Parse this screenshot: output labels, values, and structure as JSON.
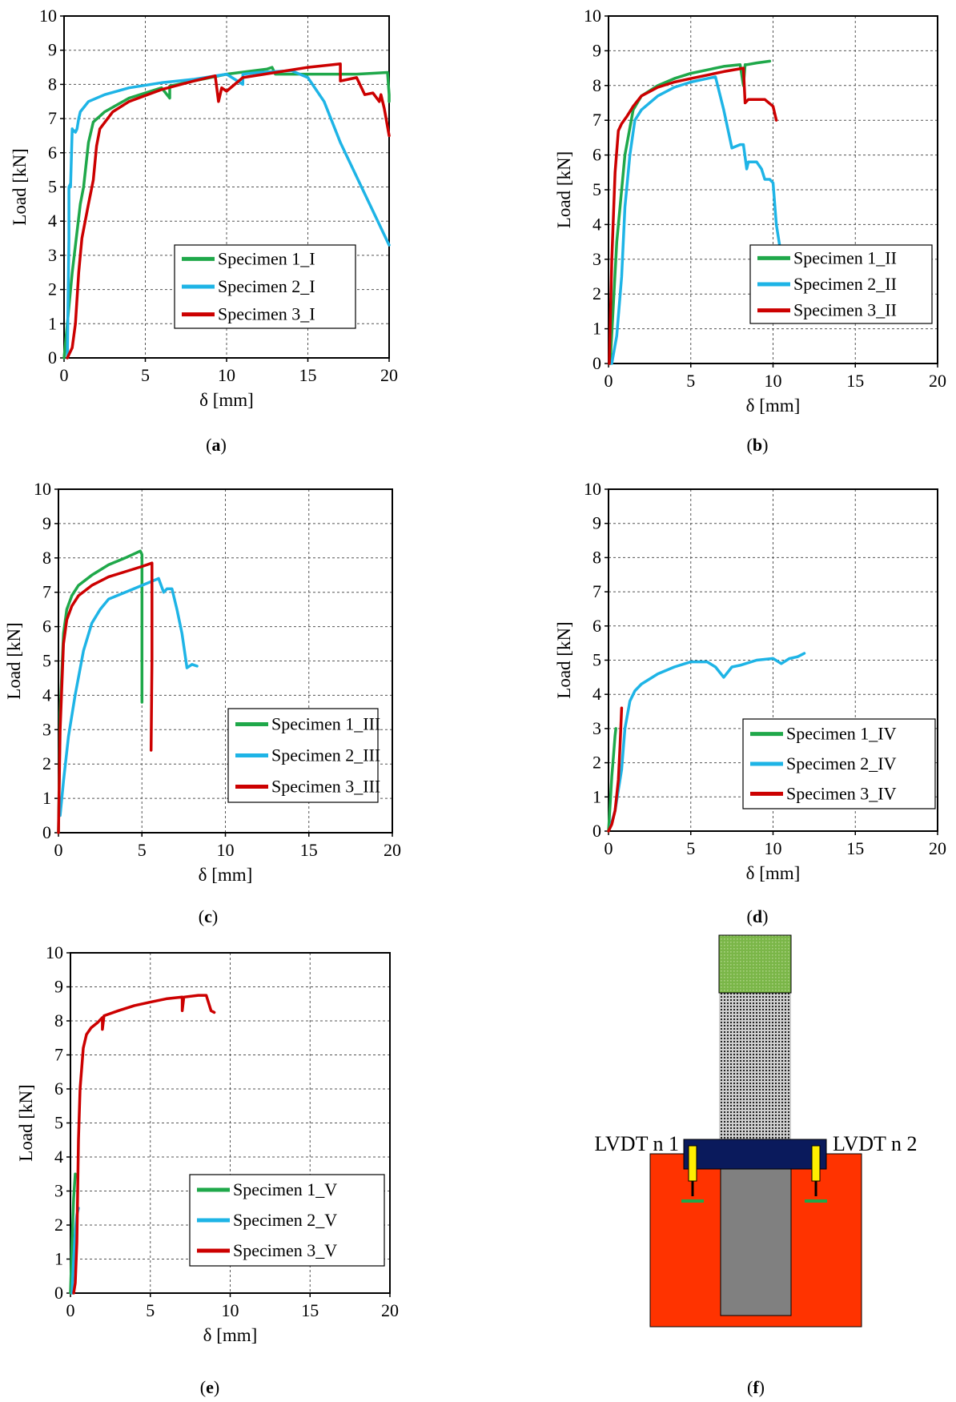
{
  "colors": {
    "green": "#1fa84a",
    "blue": "#1eb4e6",
    "red": "#cc0000",
    "setup_block": "#ff3300",
    "setup_plate": "#0a1a5c",
    "setup_bar": "#808080",
    "setup_top": "#7ab648",
    "setup_lvdt": "#ffee00",
    "setup_anchor": "#1fa84a"
  },
  "chart_data": [
    {
      "id": "a",
      "panel_label": "(a)",
      "type": "line",
      "xlabel": "δ [mm]",
      "ylabel": "Load [kN]",
      "xlim": [
        0,
        20
      ],
      "ylim": [
        0,
        10
      ],
      "xticks": [
        0,
        5,
        10,
        15,
        20
      ],
      "yticks": [
        0,
        1,
        2,
        3,
        4,
        5,
        6,
        7,
        8,
        9,
        10
      ],
      "grid": true,
      "legend_position": "bottom-right",
      "series": [
        {
          "name": "Specimen 1_I",
          "color": "green",
          "x": [
            0,
            0.5,
            1,
            1.2,
            1.5,
            1.8,
            2.5,
            4,
            6,
            6.5,
            6.5,
            8,
            10,
            12.5,
            12.8,
            13,
            15,
            18,
            19.9,
            20,
            20
          ],
          "y": [
            0,
            2.5,
            4.5,
            5.0,
            6.3,
            6.9,
            7.2,
            7.6,
            7.9,
            7.6,
            7.95,
            8.1,
            8.3,
            8.45,
            8.5,
            8.3,
            8.3,
            8.3,
            8.35,
            7.7,
            7.5
          ]
        },
        {
          "name": "Specimen 2_I",
          "color": "blue",
          "x": [
            0.2,
            0.3,
            0.3,
            0.4,
            0.4,
            0.5,
            0.5,
            0.6,
            0.7,
            0.8,
            0.9,
            1.0,
            1.5,
            2.5,
            4,
            6,
            8,
            10,
            11,
            11,
            12,
            14,
            15,
            16,
            17,
            20
          ],
          "y": [
            0,
            3.5,
            5.0,
            5.1,
            5.0,
            6.7,
            6.6,
            6.65,
            6.6,
            6.7,
            7.0,
            7.2,
            7.5,
            7.7,
            7.9,
            8.05,
            8.15,
            8.3,
            8.0,
            8.3,
            8.35,
            8.4,
            8.2,
            7.5,
            6.3,
            3.3
          ]
        },
        {
          "name": "Specimen 3_I",
          "color": "red",
          "x": [
            0.2,
            0.5,
            0.7,
            0.9,
            1.1,
            1.5,
            1.8,
            2,
            2.2,
            3,
            4,
            6,
            8,
            9.3,
            9.5,
            9.7,
            10,
            11,
            13,
            15,
            17,
            17,
            18,
            18.5,
            19,
            19.4,
            19.5,
            19.7,
            20
          ],
          "y": [
            0,
            0.3,
            1.0,
            2.5,
            3.5,
            4.5,
            5.2,
            6.2,
            6.7,
            7.2,
            7.5,
            7.85,
            8.1,
            8.25,
            7.5,
            7.9,
            7.8,
            8.2,
            8.35,
            8.5,
            8.6,
            8.1,
            8.2,
            7.7,
            7.75,
            7.5,
            7.7,
            7.3,
            6.5
          ]
        }
      ]
    },
    {
      "id": "b",
      "panel_label": "(b)",
      "type": "line",
      "xlabel": "δ [mm]",
      "ylabel": "Load [kN]",
      "xlim": [
        0,
        20
      ],
      "ylim": [
        0,
        10
      ],
      "xticks": [
        0,
        5,
        10,
        15,
        20
      ],
      "yticks": [
        0,
        1,
        2,
        3,
        4,
        5,
        6,
        7,
        8,
        9,
        10
      ],
      "grid": true,
      "legend_position": "bottom-right",
      "series": [
        {
          "name": "Specimen 1_II",
          "color": "green",
          "x": [
            0.1,
            0.5,
            1,
            1.5,
            2,
            3,
            4,
            5,
            6,
            7,
            8,
            8.2,
            8.3,
            8.4,
            9,
            9.8
          ],
          "y": [
            0,
            3.5,
            6.0,
            7.3,
            7.7,
            8.0,
            8.2,
            8.35,
            8.45,
            8.55,
            8.6,
            8.0,
            8.6,
            8.6,
            8.65,
            8.7
          ]
        },
        {
          "name": "Specimen 2_II",
          "color": "blue",
          "x": [
            0.2,
            0.5,
            0.8,
            1,
            1.3,
            1.6,
            2,
            3,
            4,
            5,
            6,
            6.5,
            7,
            7.5,
            8,
            8.2,
            8.4,
            8.5,
            9,
            9.3,
            9.5,
            9.8,
            10,
            10.2,
            10.4
          ],
          "y": [
            0,
            0.8,
            2.5,
            4.5,
            6.0,
            7.0,
            7.3,
            7.7,
            7.95,
            8.1,
            8.2,
            8.25,
            7.3,
            6.2,
            6.3,
            6.3,
            5.6,
            5.8,
            5.8,
            5.6,
            5.3,
            5.3,
            5.2,
            4.0,
            3.4
          ]
        },
        {
          "name": "Specimen 3_II",
          "color": "red",
          "x": [
            0.05,
            0.2,
            0.4,
            0.6,
            0.8,
            1.1,
            1.5,
            2,
            3,
            4,
            5,
            6,
            7,
            8.2,
            8.3,
            8.5,
            9,
            9.5,
            10,
            10.2
          ],
          "y": [
            0,
            3.0,
            5.5,
            6.7,
            6.9,
            7.1,
            7.4,
            7.7,
            7.95,
            8.1,
            8.2,
            8.3,
            8.4,
            8.5,
            7.5,
            7.6,
            7.6,
            7.6,
            7.4,
            7.0
          ]
        }
      ]
    },
    {
      "id": "c",
      "panel_label": "(c)",
      "type": "line",
      "xlabel": "δ [mm]",
      "ylabel": "Load [kN]",
      "xlim": [
        0,
        20
      ],
      "ylim": [
        0,
        10
      ],
      "xticks": [
        0,
        5,
        10,
        15,
        20
      ],
      "yticks": [
        0,
        1,
        2,
        3,
        4,
        5,
        6,
        7,
        8,
        9,
        10
      ],
      "grid": true,
      "legend_position": "bottom-right",
      "series": [
        {
          "name": "Specimen 1_III",
          "color": "green",
          "x": [
            0,
            0.1,
            0.3,
            0.5,
            0.8,
            1.2,
            2,
            3,
            4,
            4.9,
            5.0,
            5.0
          ],
          "y": [
            0,
            3.5,
            5.8,
            6.5,
            6.9,
            7.2,
            7.5,
            7.8,
            8.0,
            8.2,
            8.1,
            3.8
          ]
        },
        {
          "name": "Specimen 2_III",
          "color": "blue",
          "x": [
            0.1,
            0.3,
            0.6,
            1,
            1.5,
            2,
            2.5,
            3,
            4,
            5,
            6,
            6.3,
            6.5,
            6.8,
            7.1,
            7.4,
            7.7,
            8,
            8.3
          ],
          "y": [
            0.5,
            1.5,
            2.8,
            4.0,
            5.3,
            6.1,
            6.5,
            6.8,
            7.0,
            7.2,
            7.4,
            7.0,
            7.1,
            7.1,
            6.5,
            5.8,
            4.8,
            4.9,
            4.85
          ]
        },
        {
          "name": "Specimen 3_III",
          "color": "red",
          "x": [
            0,
            0.1,
            0.3,
            0.5,
            0.8,
            1.2,
            2,
            3,
            4,
            5,
            5.6,
            5.6,
            5.55
          ],
          "y": [
            0,
            3.0,
            5.5,
            6.2,
            6.6,
            6.9,
            7.2,
            7.45,
            7.6,
            7.75,
            7.85,
            5.0,
            2.4
          ]
        }
      ]
    },
    {
      "id": "d",
      "panel_label": "(d)",
      "type": "line",
      "xlabel": "δ [mm]",
      "ylabel": "Load [kN]",
      "xlim": [
        0,
        20
      ],
      "ylim": [
        0,
        10
      ],
      "xticks": [
        0,
        5,
        10,
        15,
        20
      ],
      "yticks": [
        0,
        1,
        2,
        3,
        4,
        5,
        6,
        7,
        8,
        9,
        10
      ],
      "grid": true,
      "legend_position": "bottom-right",
      "series": [
        {
          "name": "Specimen 1_IV",
          "color": "green",
          "x": [
            0,
            0.1,
            0.2,
            0.3,
            0.4,
            0.45
          ],
          "y": [
            0,
            0.8,
            1.6,
            2.2,
            2.8,
            3.0
          ]
        },
        {
          "name": "Specimen 2_IV",
          "color": "blue",
          "x": [
            0.1,
            0.4,
            0.8,
            1,
            1.3,
            1.6,
            2,
            3,
            4,
            5,
            6,
            6.5,
            7,
            7.5,
            8,
            9,
            10,
            10.5,
            11,
            11.5,
            11.9
          ],
          "y": [
            0.1,
            0.6,
            1.8,
            3.0,
            3.8,
            4.1,
            4.3,
            4.6,
            4.8,
            4.95,
            4.95,
            4.8,
            4.5,
            4.8,
            4.85,
            5.0,
            5.05,
            4.9,
            5.05,
            5.1,
            5.2
          ]
        },
        {
          "name": "Specimen 3_IV",
          "color": "red",
          "x": [
            0,
            0.2,
            0.4,
            0.6,
            0.7,
            0.8
          ],
          "y": [
            0,
            0.2,
            0.6,
            1.5,
            2.5,
            3.6
          ]
        }
      ]
    },
    {
      "id": "e",
      "panel_label": "(e)",
      "type": "line",
      "xlabel": "δ [mm]",
      "ylabel": "Load [kN]",
      "xlim": [
        0,
        20
      ],
      "ylim": [
        0,
        10
      ],
      "xticks": [
        0,
        5,
        10,
        15,
        20
      ],
      "yticks": [
        0,
        1,
        2,
        3,
        4,
        5,
        6,
        7,
        8,
        9,
        10
      ],
      "grid": true,
      "legend_position": "bottom-right",
      "series": [
        {
          "name": "Specimen 1_V",
          "color": "green",
          "x": [
            0,
            0.1,
            0.2,
            0.3
          ],
          "y": [
            0,
            1.5,
            2.8,
            3.5
          ]
        },
        {
          "name": "Specimen 2_V",
          "color": "blue",
          "x": [
            0.1,
            0.2,
            0.3,
            0.4,
            0.5
          ],
          "y": [
            0,
            1.0,
            1.8,
            2.3,
            2.5
          ]
        },
        {
          "name": "Specimen 3_V",
          "color": "red",
          "x": [
            0.2,
            0.3,
            0.4,
            0.45,
            0.5,
            0.6,
            0.8,
            1.0,
            1.3,
            1.7,
            2.0,
            2.0,
            2.1,
            3,
            4,
            5,
            6,
            7,
            7.0,
            7.1,
            8,
            8.5,
            8.8,
            9.0
          ],
          "y": [
            0,
            0.3,
            1.5,
            3.0,
            4.5,
            6.0,
            7.2,
            7.6,
            7.8,
            7.95,
            8.1,
            7.75,
            8.15,
            8.3,
            8.45,
            8.55,
            8.65,
            8.7,
            8.3,
            8.7,
            8.75,
            8.75,
            8.3,
            8.25
          ]
        }
      ]
    }
  ],
  "setup_panel": {
    "panel_label": "(f)",
    "lvdt_left": "LVDT n 1",
    "lvdt_right": "LVDT n 2"
  }
}
